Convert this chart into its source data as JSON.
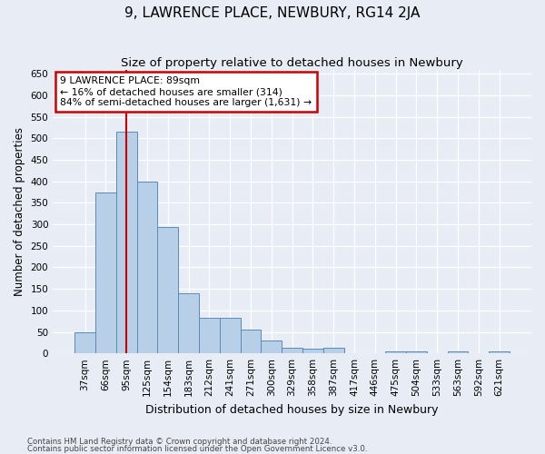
{
  "title": "9, LAWRENCE PLACE, NEWBURY, RG14 2JA",
  "subtitle": "Size of property relative to detached houses in Newbury",
  "xlabel": "Distribution of detached houses by size in Newbury",
  "ylabel": "Number of detached properties",
  "categories": [
    "37sqm",
    "66sqm",
    "95sqm",
    "125sqm",
    "154sqm",
    "183sqm",
    "212sqm",
    "241sqm",
    "271sqm",
    "300sqm",
    "329sqm",
    "358sqm",
    "387sqm",
    "417sqm",
    "446sqm",
    "475sqm",
    "504sqm",
    "533sqm",
    "563sqm",
    "592sqm",
    "621sqm"
  ],
  "values": [
    50,
    375,
    515,
    400,
    293,
    140,
    82,
    82,
    55,
    30,
    12,
    10,
    12,
    0,
    0,
    5,
    5,
    0,
    5,
    0,
    5
  ],
  "bar_color": "#b8cfe8",
  "bar_edge_color": "#5a8ab8",
  "vline_x": 2,
  "vline_color": "#cc0000",
  "annotation_line1": "9 LAWRENCE PLACE: 89sqm",
  "annotation_line2": "← 16% of detached houses are smaller (314)",
  "annotation_line3": "84% of semi-detached houses are larger (1,631) →",
  "annotation_box_color": "#ffffff",
  "annotation_box_edge_color": "#cc0000",
  "ylim": [
    0,
    660
  ],
  "yticks": [
    0,
    50,
    100,
    150,
    200,
    250,
    300,
    350,
    400,
    450,
    500,
    550,
    600,
    650
  ],
  "footer_line1": "Contains HM Land Registry data © Crown copyright and database right 2024.",
  "footer_line2": "Contains public sector information licensed under the Open Government Licence v3.0.",
  "bg_color": "#e8ecf5",
  "plot_bg_color": "#e8ecf5",
  "title_fontsize": 11,
  "subtitle_fontsize": 9.5,
  "tick_fontsize": 7.5,
  "ylabel_fontsize": 8.5,
  "xlabel_fontsize": 9
}
